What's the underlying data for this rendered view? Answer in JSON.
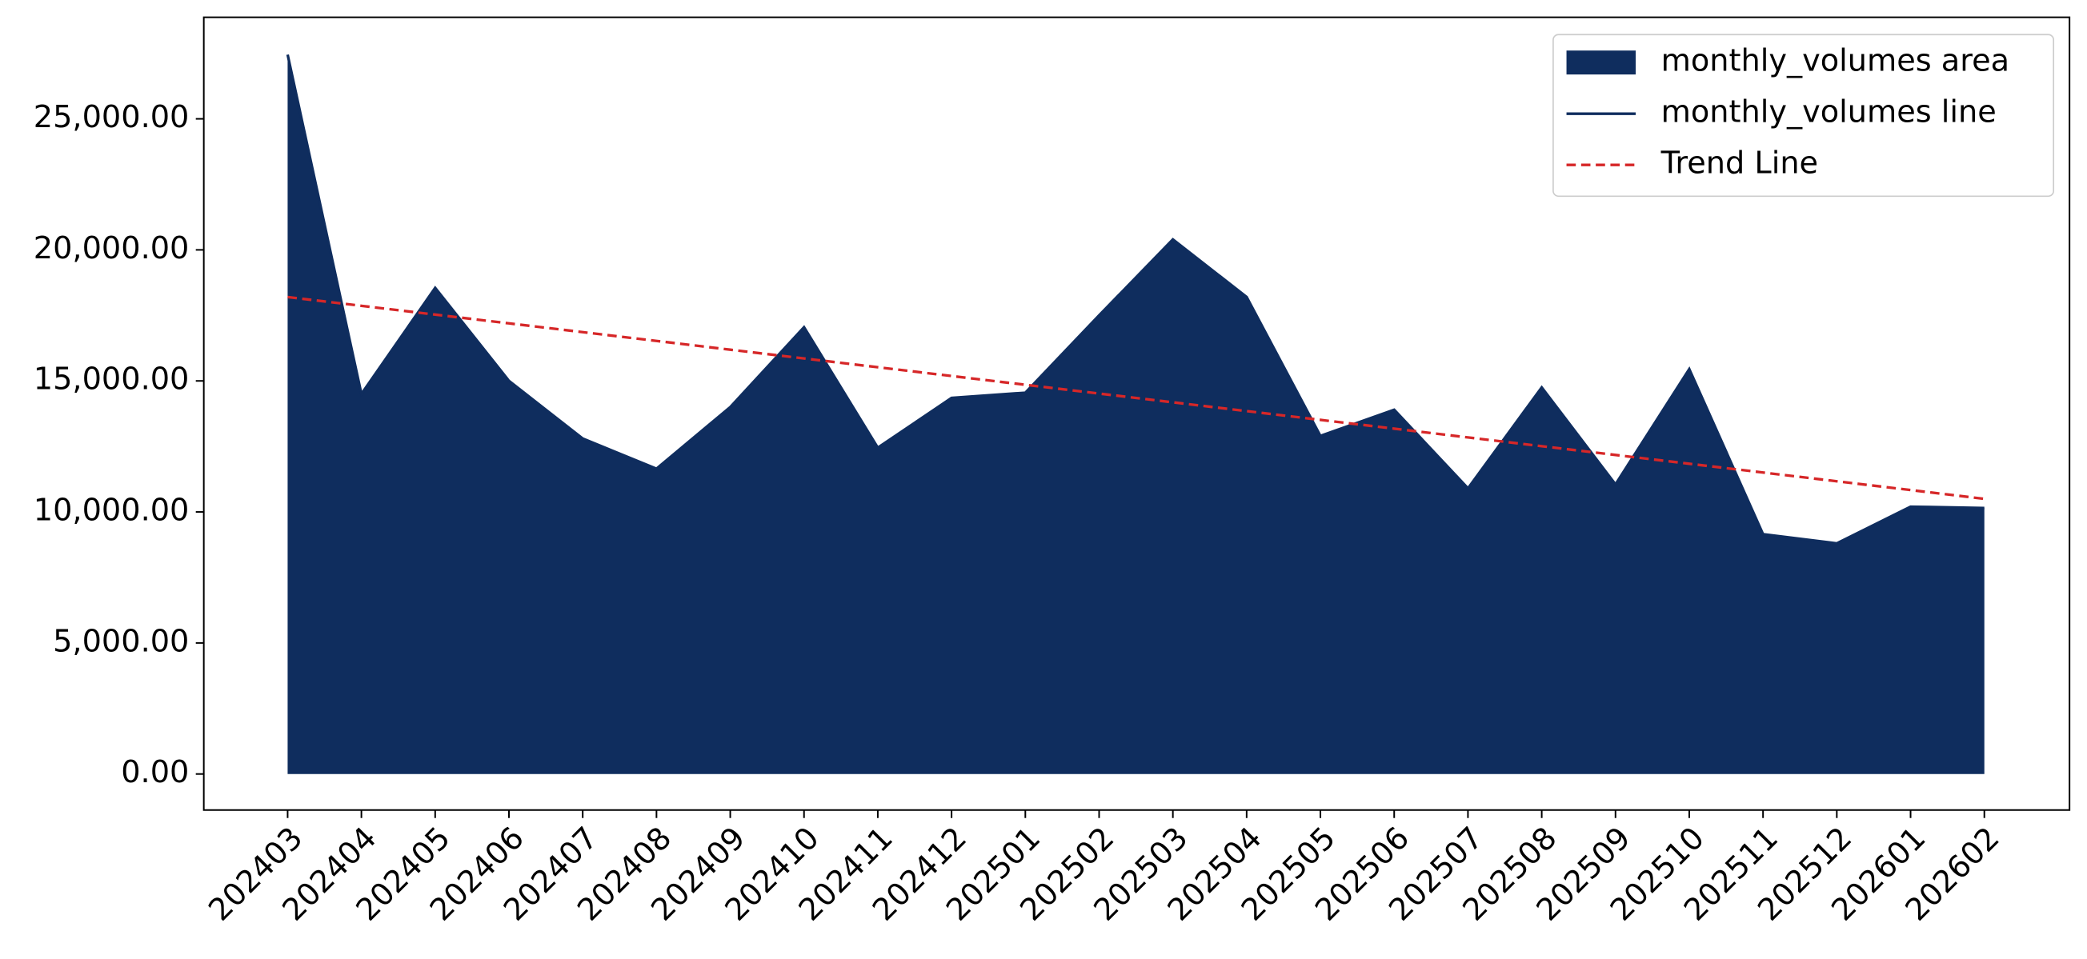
{
  "chart_data": {
    "type": "area",
    "categories": [
      "202403",
      "202404",
      "202405",
      "202406",
      "202407",
      "202408",
      "202409",
      "202410",
      "202411",
      "202412",
      "202501",
      "202502",
      "202503",
      "202504",
      "202505",
      "202506",
      "202507",
      "202508",
      "202509",
      "202510",
      "202511",
      "202512",
      "202601",
      "202602"
    ],
    "series": [
      {
        "name": "monthly_volumes area",
        "color": "#0f2d5e",
        "style": "area",
        "values": [
          27450,
          14500,
          18550,
          15000,
          12800,
          11650,
          14000,
          17050,
          12450,
          14350,
          14550,
          17500,
          20400,
          18200,
          12900,
          13900,
          10900,
          14750,
          11050,
          15450,
          9150,
          8800,
          10200,
          10150
        ]
      },
      {
        "name": "monthly_volumes line",
        "color": "#0f2d5e",
        "style": "line",
        "values": [
          27450,
          14500,
          18550,
          15000,
          12800,
          11650,
          14000,
          17050,
          12450,
          14350,
          14550,
          17500,
          20400,
          18200,
          12900,
          13900,
          10900,
          14750,
          11050,
          15450,
          9150,
          8800,
          10200,
          10150
        ]
      },
      {
        "name": "Trend Line",
        "color": "#d62728",
        "style": "dashed",
        "values": [
          18200,
          17865,
          17530,
          17196,
          16861,
          16526,
          16191,
          15857,
          15522,
          15187,
          14852,
          14517,
          14183,
          13848,
          13513,
          13178,
          12843,
          12509,
          12174,
          11839,
          11504,
          11170,
          10835,
          10500
        ]
      }
    ],
    "ylim": [
      -1375,
      28875
    ],
    "yticks": [
      {
        "value": 0,
        "label": "0.00"
      },
      {
        "value": 5000,
        "label": "5,000.00"
      },
      {
        "value": 10000,
        "label": "10,000.00"
      },
      {
        "value": 15000,
        "label": "15,000.00"
      },
      {
        "value": 20000,
        "label": "20,000.00"
      },
      {
        "value": 25000,
        "label": "25,000.00"
      }
    ],
    "legend": "upper right",
    "grid": false
  }
}
